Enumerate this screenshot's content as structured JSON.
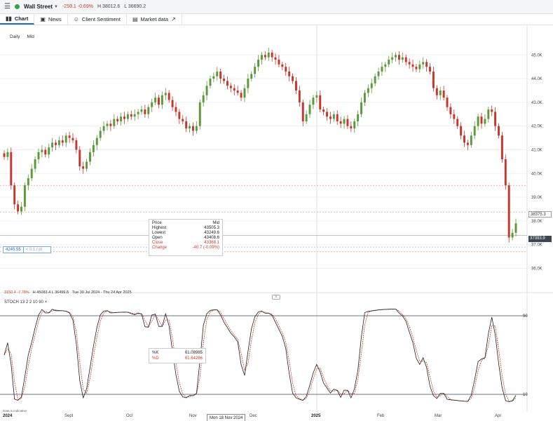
{
  "topbar": {
    "menu_icon": "menu-icon",
    "market": "Wall Street",
    "change": "-259.1  -0.69%",
    "high": "H 38012.6",
    "low": "L 36690.2"
  },
  "tabs": [
    {
      "label": "Chart",
      "icon": "chart-icon",
      "active": true
    },
    {
      "label": "News",
      "icon": "news-icon"
    },
    {
      "label": "Client Sentiment",
      "icon": "people-icon"
    },
    {
      "label": "Market data",
      "icon": "document-icon",
      "external_icon": "external-link-icon"
    }
  ],
  "timeframe": {
    "daily": "Daily",
    "mid": "Mid"
  },
  "price_axis": [
    "45.0K",
    "44.0K",
    "43.0K",
    "42.0K",
    "41.0K",
    "40.0K",
    "39.0K",
    "38.0K",
    "37.0K",
    "36.0K"
  ],
  "price_tags": {
    "last": "38375.3",
    "current": "37393.9"
  },
  "order": {
    "value": "4245.55",
    "detail": "< 0.1 / pt"
  },
  "ohlc": {
    "price_label": "Price",
    "price_value": "Mid",
    "highest_label": "Highest",
    "highest_value": "43505.3",
    "lowest_label": "Lowest",
    "lowest_value": "43249.6",
    "open_label": "Open",
    "open_value": "43408.6",
    "close_label": "Close",
    "close_value": "43368.1",
    "change_label": "Change",
    "change_value": "-40.7 (-0.09%)"
  },
  "summary": {
    "change": "3150.4  -7.78%",
    "hl": "H 45083.4  L 36499.8",
    "range": "Tue 30 Jul 2024 - Thu 24 Apr 2025"
  },
  "stochastic": {
    "label": "STOCH  13  2  2  10  90  ×",
    "k_label": "%K",
    "k_value": "61.08985",
    "d_label": "%D",
    "d_value": "61.64286",
    "level_high": "90",
    "level_low": "10"
  },
  "date_axis": {
    "y2024": "2024",
    "sept": "Sept",
    "oct": "Oct",
    "nov": "Nov",
    "hover": "Mon 18 Nov 2024",
    "dec": "Dec",
    "y2025": "2025",
    "feb": "Feb",
    "mar": "Mar",
    "apr": "Apr"
  },
  "disclaimer": "Data is indicative",
  "colors": {
    "up": "#5b9a3a",
    "down": "#c9352a",
    "k_line": "#1b1f23",
    "d_line": "#d13b2a"
  },
  "chart_data": {
    "type": "candlestick",
    "y_range": [
      35600,
      45600
    ],
    "closes": [
      40700,
      40900,
      39500,
      38700,
      38400,
      38600,
      39500,
      39800,
      40200,
      40600,
      40900,
      41000,
      40800,
      41100,
      41300,
      41200,
      41400,
      41300,
      41600,
      41500,
      41400,
      41000,
      40300,
      40200,
      40500,
      40900,
      41200,
      41500,
      41800,
      42000,
      42100,
      42000,
      42300,
      42200,
      42400,
      42300,
      42500,
      42400,
      42500,
      42600,
      42700,
      42500,
      42800,
      43000,
      43200,
      42900,
      43300,
      43400,
      43100,
      42800,
      42600,
      42300,
      42200,
      41900,
      42000,
      41800,
      42000,
      43000,
      43300,
      43700,
      44000,
      44100,
      44300,
      44000,
      43900,
      43700,
      43600,
      43500,
      43400,
      43200,
      43600,
      44000,
      44200,
      44500,
      44800,
      45000,
      44900,
      45100,
      44900,
      44800,
      44600,
      44500,
      44300,
      44100,
      43900,
      43500,
      43000,
      42200,
      42500,
      42900,
      43200,
      43300,
      42700,
      42600,
      42400,
      42300,
      42500,
      42200,
      42100,
      42300,
      42000,
      41900,
      42200,
      42500,
      43000,
      43400,
      43600,
      43800,
      44100,
      44300,
      44500,
      44600,
      44800,
      44900,
      45000,
      44800,
      44900,
      44700,
      44600,
      44500,
      44400,
      44600,
      44700,
      44500,
      44300,
      43600,
      43300,
      43500,
      43200,
      42800,
      42500,
      42300,
      42000,
      41600,
      41300,
      41200,
      41600,
      42000,
      42400,
      42100,
      42300,
      42700,
      42600,
      42000,
      41600,
      40600,
      39500,
      37300,
      37500,
      37900
    ]
  }
}
